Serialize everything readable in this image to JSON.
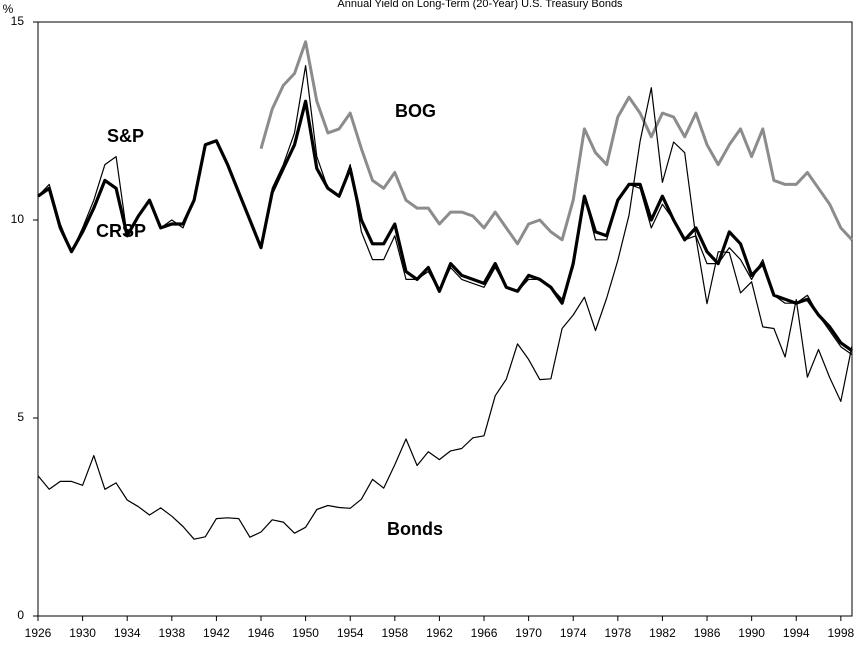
{
  "chart_data": {
    "type": "line",
    "title": "Annual Yield on Long-Term (20-Year) U.S. Treasury Bonds",
    "y_unit": "%",
    "x": [
      1926,
      1927,
      1928,
      1929,
      1930,
      1931,
      1932,
      1933,
      1934,
      1935,
      1936,
      1937,
      1938,
      1939,
      1940,
      1941,
      1942,
      1943,
      1944,
      1945,
      1946,
      1947,
      1948,
      1949,
      1950,
      1951,
      1952,
      1953,
      1954,
      1955,
      1956,
      1957,
      1958,
      1959,
      1960,
      1961,
      1962,
      1963,
      1964,
      1965,
      1966,
      1967,
      1968,
      1969,
      1970,
      1971,
      1972,
      1973,
      1974,
      1975,
      1976,
      1977,
      1978,
      1979,
      1980,
      1981,
      1982,
      1983,
      1984,
      1985,
      1986,
      1987,
      1988,
      1989,
      1990,
      1991,
      1992,
      1993,
      1994,
      1995,
      1996,
      1997,
      1998,
      1999
    ],
    "xlim": [
      1926,
      1999
    ],
    "xticks": [
      1926,
      1930,
      1934,
      1938,
      1942,
      1946,
      1950,
      1954,
      1958,
      1962,
      1966,
      1970,
      1974,
      1978,
      1982,
      1986,
      1990,
      1994,
      1998
    ],
    "ylim": [
      0,
      15
    ],
    "yticks": [
      0,
      5,
      10,
      15
    ],
    "grid": false,
    "series": [
      {
        "name": "S&P",
        "color": "#000000",
        "values": [
          10.6,
          10.9,
          9.9,
          9.2,
          9.8,
          10.5,
          11.4,
          11.6,
          9.6,
          10.1,
          10.5,
          9.8,
          10.0,
          9.8,
          10.5,
          11.9,
          12.0,
          11.4,
          10.7,
          10.0,
          9.3,
          10.8,
          11.4,
          12.2,
          13.9,
          11.6,
          10.8,
          10.6,
          11.4,
          9.7,
          9.0,
          9.0,
          9.6,
          8.5,
          8.5,
          8.7,
          8.2,
          8.8,
          8.5,
          8.4,
          8.3,
          8.8,
          8.3,
          8.2,
          8.5,
          8.5,
          8.3,
          8.0,
          8.8,
          10.6,
          9.5,
          9.5,
          10.5,
          10.9,
          10.8,
          9.8,
          10.4,
          10.0,
          9.5,
          9.6,
          8.9,
          8.9,
          9.3,
          9.0,
          8.5,
          9.0,
          8.1,
          7.9,
          7.9,
          8.1,
          7.6,
          7.2,
          6.8,
          6.6
        ]
      },
      {
        "name": "CRSP",
        "color": "#000000",
        "values": [
          10.6,
          10.8,
          9.8,
          9.2,
          9.7,
          10.3,
          11.0,
          10.8,
          9.6,
          10.1,
          10.5,
          9.8,
          9.9,
          9.9,
          10.5,
          11.9,
          12.0,
          11.4,
          10.7,
          10.0,
          9.3,
          10.7,
          11.3,
          11.9,
          13.0,
          11.3,
          10.8,
          10.6,
          11.3,
          10.0,
          9.4,
          9.4,
          9.9,
          8.7,
          8.5,
          8.8,
          8.2,
          8.9,
          8.6,
          8.5,
          8.4,
          8.9,
          8.3,
          8.2,
          8.6,
          8.5,
          8.3,
          7.9,
          8.9,
          10.6,
          9.7,
          9.6,
          10.5,
          10.9,
          10.9,
          10.0,
          10.6,
          10.0,
          9.5,
          9.8,
          9.2,
          8.9,
          9.7,
          9.4,
          8.6,
          8.9,
          8.1,
          8.0,
          7.9,
          8.0,
          7.6,
          7.3,
          6.9,
          6.7
        ]
      },
      {
        "name": "BOG",
        "color": "#8c8c8c",
        "values": [
          null,
          null,
          null,
          null,
          null,
          null,
          null,
          null,
          null,
          null,
          null,
          null,
          null,
          null,
          null,
          null,
          null,
          null,
          null,
          null,
          11.8,
          12.8,
          13.4,
          13.7,
          14.5,
          13.0,
          12.2,
          12.3,
          12.7,
          11.8,
          11.0,
          10.8,
          11.2,
          10.5,
          10.3,
          10.3,
          9.9,
          10.2,
          10.2,
          10.1,
          9.8,
          10.2,
          9.8,
          9.4,
          9.9,
          10.0,
          9.7,
          9.5,
          10.5,
          12.3,
          11.7,
          11.4,
          12.6,
          13.1,
          12.7,
          12.1,
          12.7,
          12.6,
          12.1,
          12.7,
          11.9,
          11.4,
          11.9,
          12.3,
          11.6,
          12.3,
          11.0,
          10.9,
          10.9,
          11.2,
          10.8,
          10.4,
          9.8,
          9.5
        ]
      },
      {
        "name": "Bonds",
        "color": "#000000",
        "values": [
          3.54,
          3.2,
          3.4,
          3.4,
          3.3,
          4.05,
          3.2,
          3.36,
          2.93,
          2.76,
          2.55,
          2.73,
          2.52,
          2.26,
          1.94,
          2.0,
          2.46,
          2.48,
          2.46,
          1.99,
          2.12,
          2.43,
          2.37,
          2.09,
          2.24,
          2.69,
          2.79,
          2.74,
          2.72,
          2.95,
          3.45,
          3.23,
          3.82,
          4.47,
          3.8,
          4.15,
          3.95,
          4.17,
          4.23,
          4.5,
          4.55,
          5.56,
          5.98,
          6.87,
          6.48,
          5.97,
          5.99,
          7.26,
          7.6,
          8.05,
          7.21,
          8.03,
          8.98,
          10.12,
          11.99,
          13.34,
          10.95,
          11.97,
          11.7,
          9.56,
          7.89,
          9.2,
          9.18,
          8.16,
          8.44,
          7.3,
          7.26,
          6.54,
          7.99,
          6.03,
          6.73,
          6.02,
          5.42,
          6.82
        ]
      }
    ]
  }
}
